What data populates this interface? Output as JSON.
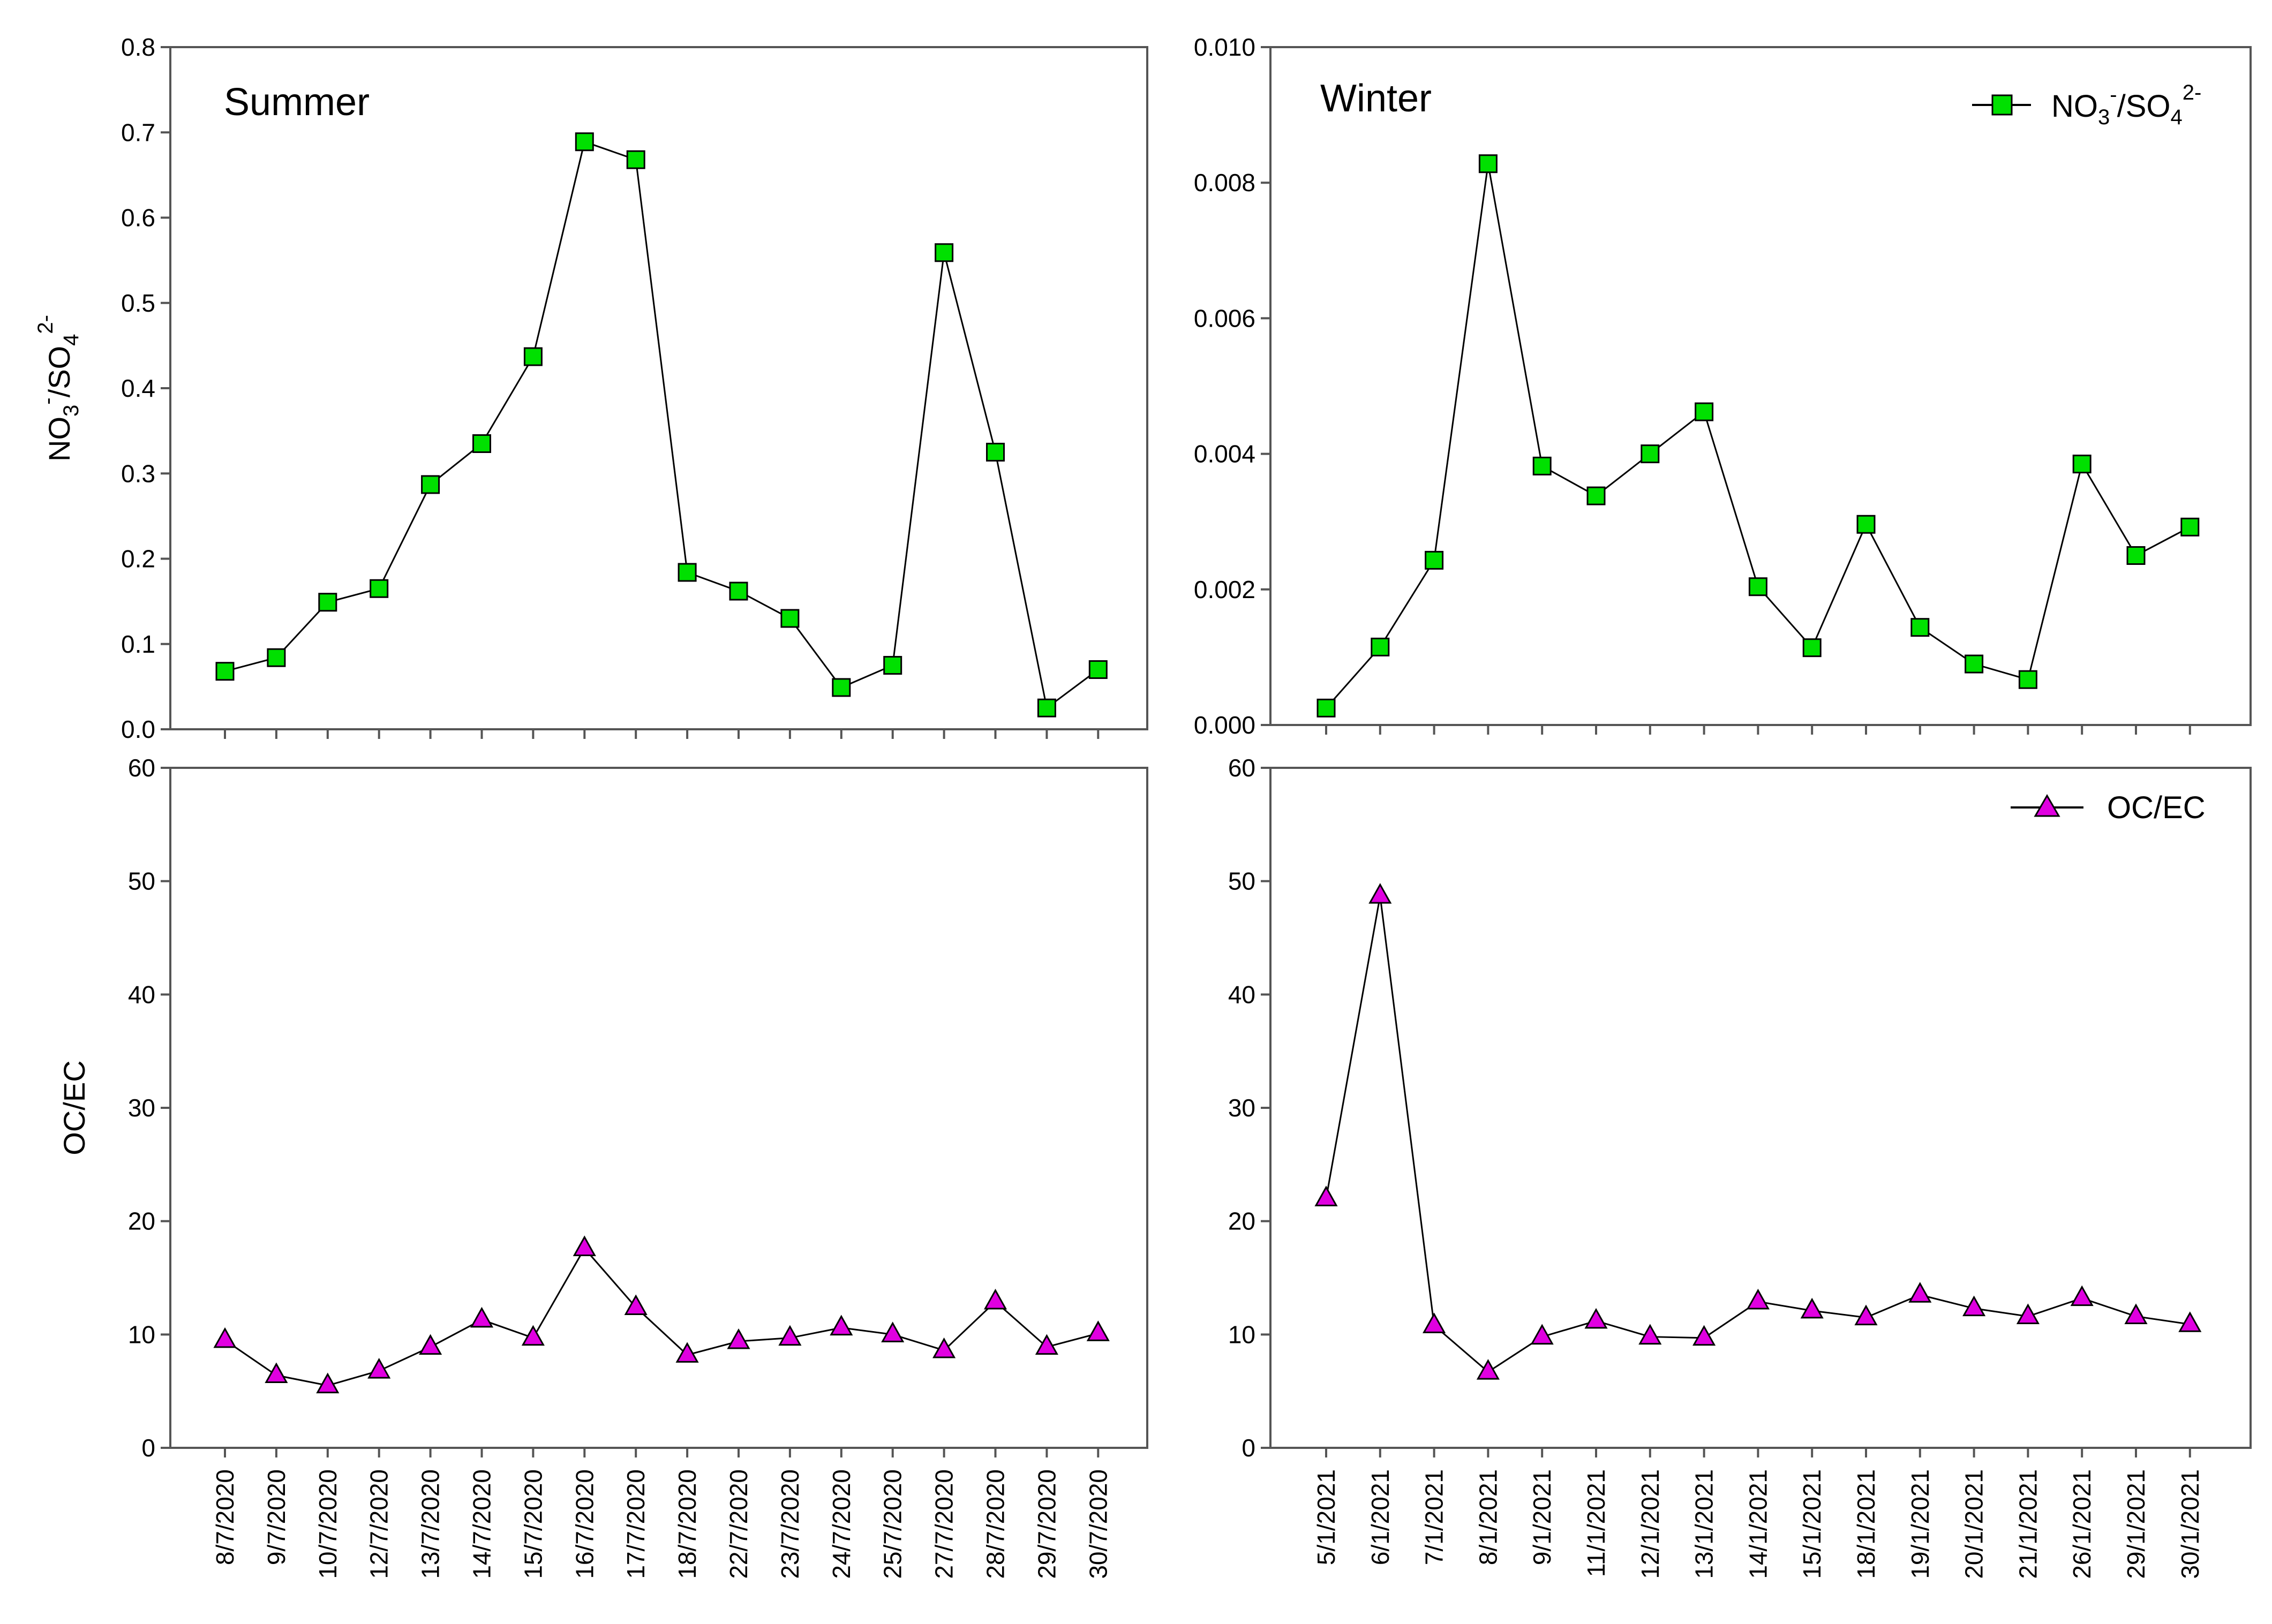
{
  "chart_data": [
    {
      "type": "line",
      "panel": "top-left",
      "title": "Summer",
      "ylabel": "NO3-/SO42-",
      "ylim": [
        0,
        0.8
      ],
      "yticks": [
        "0.0",
        "0.1",
        "0.2",
        "0.3",
        "0.4",
        "0.5",
        "0.6",
        "0.7",
        "0.8"
      ],
      "categories": [
        "8/7/2020",
        "9/7/2020",
        "10/7/2020",
        "12/7/2020",
        "13/7/2020",
        "14/7/2020",
        "15/7/2020",
        "16/7/2020",
        "17/7/2020",
        "18/7/2020",
        "22/7/2020",
        "23/7/2020",
        "24/7/2020",
        "25/7/2020",
        "27/7/2020",
        "28/7/2020",
        "29/7/2020",
        "30/7/2020"
      ],
      "series": [
        {
          "name": "NO3-/SO42-",
          "marker": "square",
          "color": "#00e000",
          "values": [
            0.068,
            0.084,
            0.149,
            0.165,
            0.287,
            0.335,
            0.437,
            0.689,
            0.668,
            0.184,
            0.162,
            0.13,
            0.049,
            0.075,
            0.559,
            0.325,
            0.025,
            0.07
          ]
        }
      ]
    },
    {
      "type": "line",
      "panel": "top-right",
      "title": "Winter",
      "ylim": [
        0,
        0.01
      ],
      "yticks": [
        "0.000",
        "0.002",
        "0.004",
        "0.006",
        "0.008",
        "0.010"
      ],
      "categories": [
        "5/1/2021",
        "6/1/2021",
        "7/1/2021",
        "8/1/2021",
        "9/1/2021",
        "11/1/2021",
        "12/1/2021",
        "13/1/2021",
        "14/1/2021",
        "15/1/2021",
        "18/1/2021",
        "19/1/2021",
        "20/1/2021",
        "21/1/2021",
        "26/1/2021",
        "29/1/2021",
        "30/1/2021"
      ],
      "legend": {
        "label": "NO3-/SO42-",
        "position": "top-right"
      },
      "series": [
        {
          "name": "NO3-/SO42-",
          "marker": "square",
          "color": "#00e000",
          "values": [
            0.00025,
            0.00115,
            0.00243,
            0.00828,
            0.00382,
            0.00338,
            0.004,
            0.00462,
            0.00204,
            0.00114,
            0.00296,
            0.00144,
            0.0009,
            0.00067,
            0.00385,
            0.0025,
            0.00292
          ]
        }
      ]
    },
    {
      "type": "line",
      "panel": "bottom-left",
      "ylabel": "OC/EC",
      "ylim": [
        0,
        60
      ],
      "yticks": [
        "0",
        "10",
        "20",
        "30",
        "40",
        "50",
        "60"
      ],
      "categories": [
        "8/7/2020",
        "9/7/2020",
        "10/7/2020",
        "12/7/2020",
        "13/7/2020",
        "14/7/2020",
        "15/7/2020",
        "16/7/2020",
        "17/7/2020",
        "18/7/2020",
        "22/7/2020",
        "23/7/2020",
        "24/7/2020",
        "25/7/2020",
        "27/7/2020",
        "28/7/2020",
        "29/7/2020",
        "30/7/2020"
      ],
      "series": [
        {
          "name": "OC/EC",
          "marker": "triangle",
          "color": "#e000e0",
          "values": [
            9.5,
            6.4,
            5.5,
            6.8,
            8.9,
            11.3,
            9.7,
            17.6,
            12.4,
            8.2,
            9.4,
            9.7,
            10.6,
            10.0,
            8.6,
            12.9,
            8.9,
            10.1
          ]
        }
      ]
    },
    {
      "type": "line",
      "panel": "bottom-right",
      "ylim": [
        0,
        60
      ],
      "yticks": [
        "0",
        "10",
        "20",
        "30",
        "40",
        "50",
        "60"
      ],
      "categories": [
        "5/1/2021",
        "6/1/2021",
        "7/1/2021",
        "8/1/2021",
        "9/1/2021",
        "11/1/2021",
        "12/1/2021",
        "13/1/2021",
        "14/1/2021",
        "15/1/2021",
        "18/1/2021",
        "19/1/2021",
        "20/1/2021",
        "21/1/2021",
        "26/1/2021",
        "29/1/2021",
        "30/1/2021"
      ],
      "legend": {
        "label": "OC/EC",
        "position": "top-right"
      },
      "series": [
        {
          "name": "OC/EC",
          "marker": "triangle",
          "color": "#e000e0",
          "values": [
            22.0,
            48.7,
            10.8,
            6.7,
            9.8,
            11.2,
            9.8,
            9.7,
            12.9,
            12.1,
            11.5,
            13.5,
            12.3,
            11.6,
            13.2,
            11.6,
            10.9
          ]
        }
      ]
    }
  ]
}
